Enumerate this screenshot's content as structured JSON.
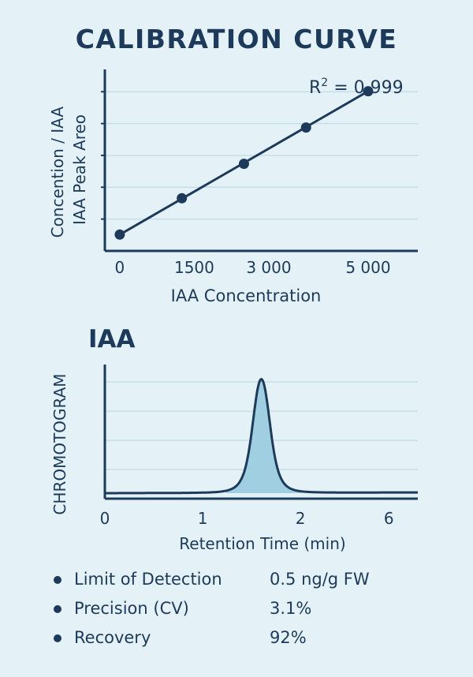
{
  "title": "CALIBRATION CURVE",
  "section2_title": "IAA",
  "colors": {
    "ink": "#1d3a5a",
    "fill": "#9fcfe0",
    "grid": "#c8dde6",
    "background": "#e4f2f8"
  },
  "chart_data": [
    {
      "type": "scatter",
      "title": "CALIBRATION CURVE",
      "xlabel": "IAA Concentration",
      "ylabel": [
        "Concention / IAA",
        "IAA Peak Areo"
      ],
      "annotation": {
        "r_label": "R",
        "r_sup": "2",
        "r_value": " = 0,999"
      },
      "x_tick_labels": [
        "0",
        "1500",
        "3 000",
        "5 000"
      ],
      "x": [
        0,
        1250,
        2500,
        3750,
        5000
      ],
      "y": [
        0.09,
        0.29,
        0.48,
        0.68,
        0.88
      ],
      "ylim": [
        0,
        1
      ],
      "xlim": [
        -300,
        6000
      ],
      "trendline": "linear",
      "grid": true
    },
    {
      "type": "area",
      "title": "IAA",
      "xlabel": "Retention Time (min)",
      "ylabel": "CHROMOTOGRAM",
      "x_tick_labels": [
        "0",
        "1",
        "2",
        "6"
      ],
      "peak": {
        "retention_time": 1.6,
        "height": 0.98,
        "width": 0.12
      },
      "xlim": [
        0,
        3.2
      ],
      "ylim": [
        0,
        1
      ],
      "grid": true
    }
  ],
  "stats": [
    {
      "label": "Limit of Detection",
      "value": "0.5 ng/g FW"
    },
    {
      "label": "Precision (CV)",
      "value": "3.1%"
    },
    {
      "label": "Recovery",
      "value": "92%"
    }
  ]
}
